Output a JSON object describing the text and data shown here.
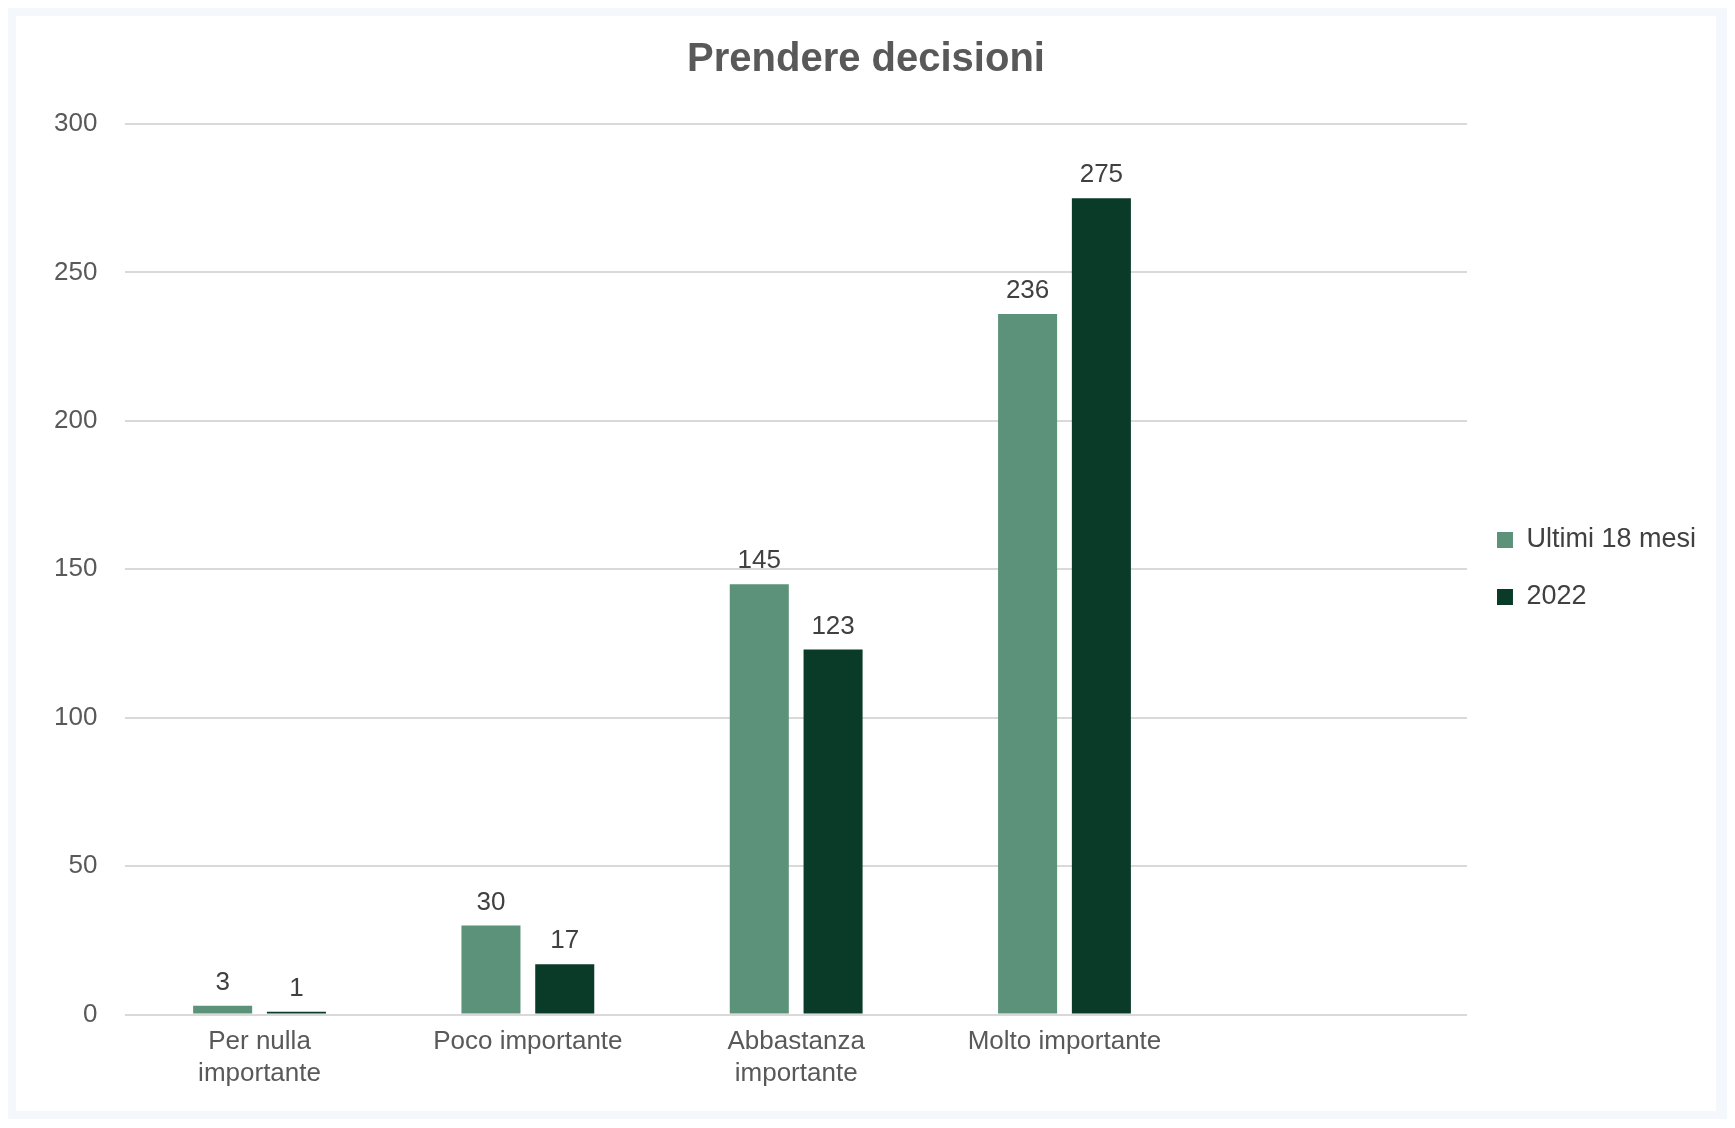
{
  "chart_data": {
    "type": "bar",
    "title": "Prendere decisioni",
    "categories": [
      "Per nulla importante",
      "Poco importante",
      "Abbastanza importante",
      "Molto importante",
      null
    ],
    "series": [
      {
        "name": "Ultimi 18 mesi",
        "color": "#5b9279",
        "values": [
          3,
          30,
          145,
          236,
          null
        ]
      },
      {
        "name": "2022",
        "color": "#0a3a28",
        "values": [
          1,
          17,
          123,
          275,
          null
        ]
      }
    ],
    "ylim": [
      0,
      300
    ],
    "yticks": [
      0,
      50,
      100,
      150,
      200,
      250,
      300
    ],
    "grid": "y",
    "legend": "right",
    "data_labels": true
  }
}
